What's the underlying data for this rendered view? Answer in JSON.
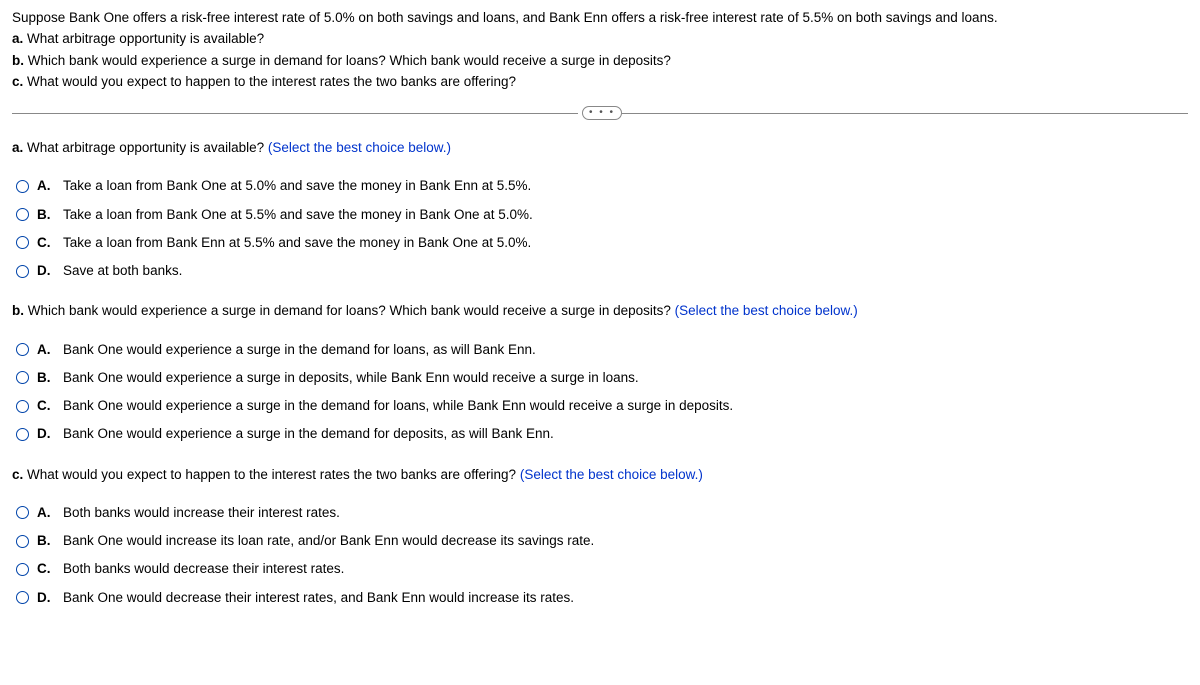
{
  "intro": {
    "line1": "Suppose Bank One offers a risk-free interest rate of 5.0% on both savings and loans, and Bank Enn offers a risk-free interest rate of 5.5% on both savings and loans.",
    "a_label": "a.",
    "a_text": " What arbitrage opportunity is available?",
    "b_label": "b.",
    "b_text": " Which bank would experience a surge in demand for loans? Which bank would receive a surge in deposits?",
    "c_label": "c.",
    "c_text": " What would you expect to happen to the interest rates the two banks are offering?"
  },
  "divider_dots": "• • •",
  "hint": "(Select the best choice below.)",
  "qa": {
    "label": "a.",
    "prompt": " What arbitrage opportunity is available?  ",
    "options": [
      {
        "letter": "A.",
        "text": "Take a loan from Bank One at 5.0% and save the money in Bank Enn at 5.5%."
      },
      {
        "letter": "B.",
        "text": "Take a loan from Bank One at 5.5% and save the money in Bank One at 5.0%."
      },
      {
        "letter": "C.",
        "text": "Take a loan from Bank Enn at 5.5% and save the money in Bank One at 5.0%."
      },
      {
        "letter": "D.",
        "text": "Save at both banks."
      }
    ]
  },
  "qb": {
    "label": "b.",
    "prompt": " Which bank would experience a surge in demand for loans? Which bank would receive a surge in deposits?  ",
    "options": [
      {
        "letter": "A.",
        "text": "Bank One would experience a surge in the demand for loans, as will Bank Enn."
      },
      {
        "letter": "B.",
        "text": "Bank One would experience a surge in deposits, while Bank Enn would receive a surge in loans."
      },
      {
        "letter": "C.",
        "text": "Bank One would experience a surge in the demand for loans, while Bank Enn would receive a surge in deposits."
      },
      {
        "letter": "D.",
        "text": "Bank One would experience a surge in the demand for deposits, as will Bank Enn."
      }
    ]
  },
  "qc": {
    "label": "c.",
    "prompt": " What would you expect to happen to the interest rates the two banks are offering?  ",
    "options": [
      {
        "letter": "A.",
        "text": "Both banks would increase their interest rates."
      },
      {
        "letter": "B.",
        "text": "Bank One would increase its loan rate, and/or Bank Enn would decrease its savings rate."
      },
      {
        "letter": "C.",
        "text": "Both banks would decrease their interest rates."
      },
      {
        "letter": "D.",
        "text": "Bank One would decrease their interest rates, and Bank Enn would increase its rates."
      }
    ]
  }
}
